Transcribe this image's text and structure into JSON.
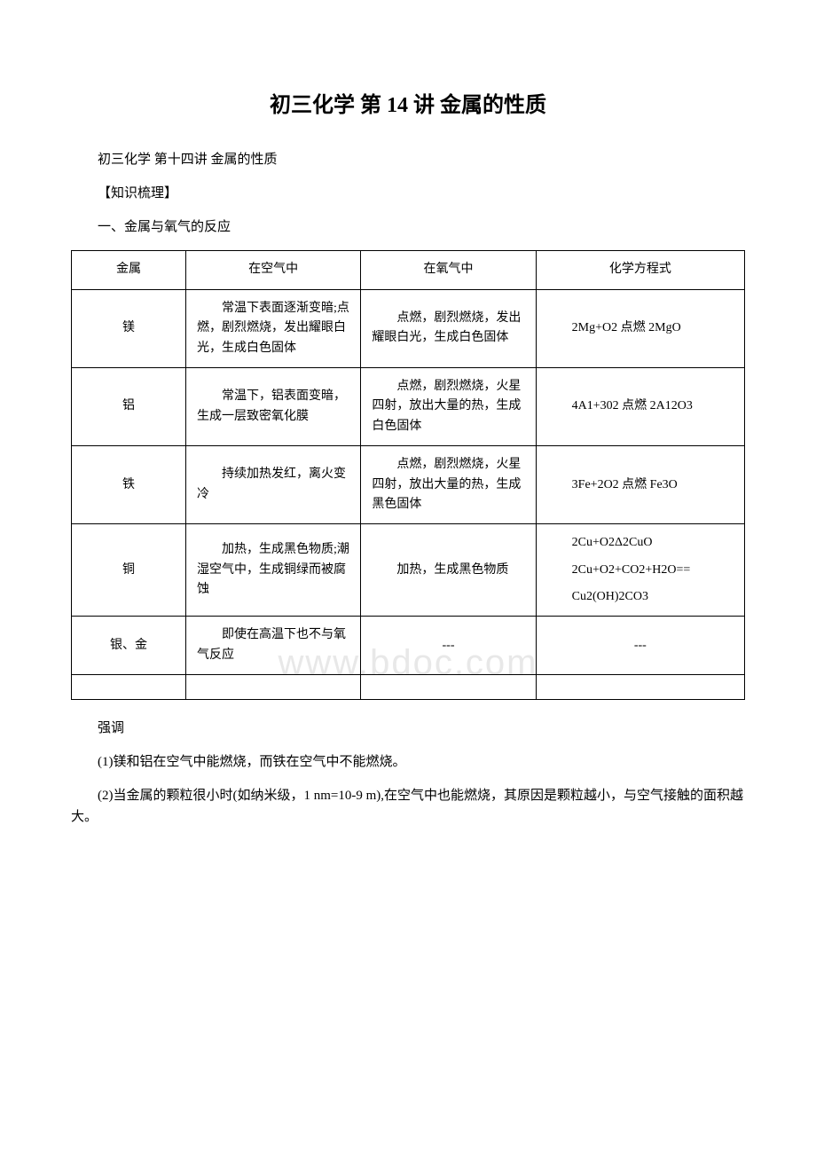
{
  "title": "初三化学 第 14 讲 金属的性质",
  "subtitle": "初三化学 第十四讲 金属的性质",
  "section_label": "【知识梳理】",
  "section_heading": "一、金属与氧气的反应",
  "watermark": "www.bdoc.com",
  "table": {
    "headers": {
      "metal": "金属",
      "air": "在空气中",
      "oxygen": "在氧气中",
      "equation": "化学方程式"
    },
    "rows": [
      {
        "metal": "镁",
        "air": "常温下表面逐渐变暗;点燃，剧烈燃烧，发出耀眼白光，生成白色固体",
        "oxygen": "点燃，剧烈燃烧，发出耀眼白光，生成白色固体",
        "equation": "2Mg+O2 点燃 2MgO"
      },
      {
        "metal": "铝",
        "air": "常温下，铝表面变暗，生成一层致密氧化膜",
        "oxygen": "点燃，剧烈燃烧，火星四射，放出大量的热，生成白色固体",
        "equation": "4A1+302 点燃 2A12O3"
      },
      {
        "metal": "铁",
        "air": "持续加热发红，离火变冷",
        "oxygen": "点燃，剧烈燃烧，火星四射，放出大量的热，生成黑色固体",
        "equation": "3Fe+2O2 点燃 Fe3O"
      },
      {
        "metal": "铜",
        "air": "加热，生成黑色物质;潮湿空气中，生成铜绿而被腐蚀",
        "oxygen": "加热，生成黑色物质",
        "equations": [
          "2Cu+O2Δ2CuO",
          "2Cu+O2+CO2+H2O==",
          "Cu2(OH)2CO3"
        ]
      },
      {
        "metal": "银、金",
        "air": "即使在高温下也不与氧气反应",
        "oxygen": "---",
        "equation": "---"
      }
    ]
  },
  "notes": {
    "emphasis": "强调",
    "note1": "(1)镁和铝在空气中能燃烧，而铁在空气中不能燃烧。",
    "note2": "(2)当金属的颗粒很小时(如纳米级，1 nm=10-9 m),在空气中也能燃烧，其原因是颗粒越小，与空气接触的面积越大。"
  },
  "styles": {
    "body_width": 920,
    "body_bg": "#ffffff",
    "text_color": "#000000",
    "border_color": "#000000",
    "watermark_color": "#e8e8e8",
    "title_fontsize": 24,
    "body_fontsize": 15,
    "table_fontsize": 14
  }
}
